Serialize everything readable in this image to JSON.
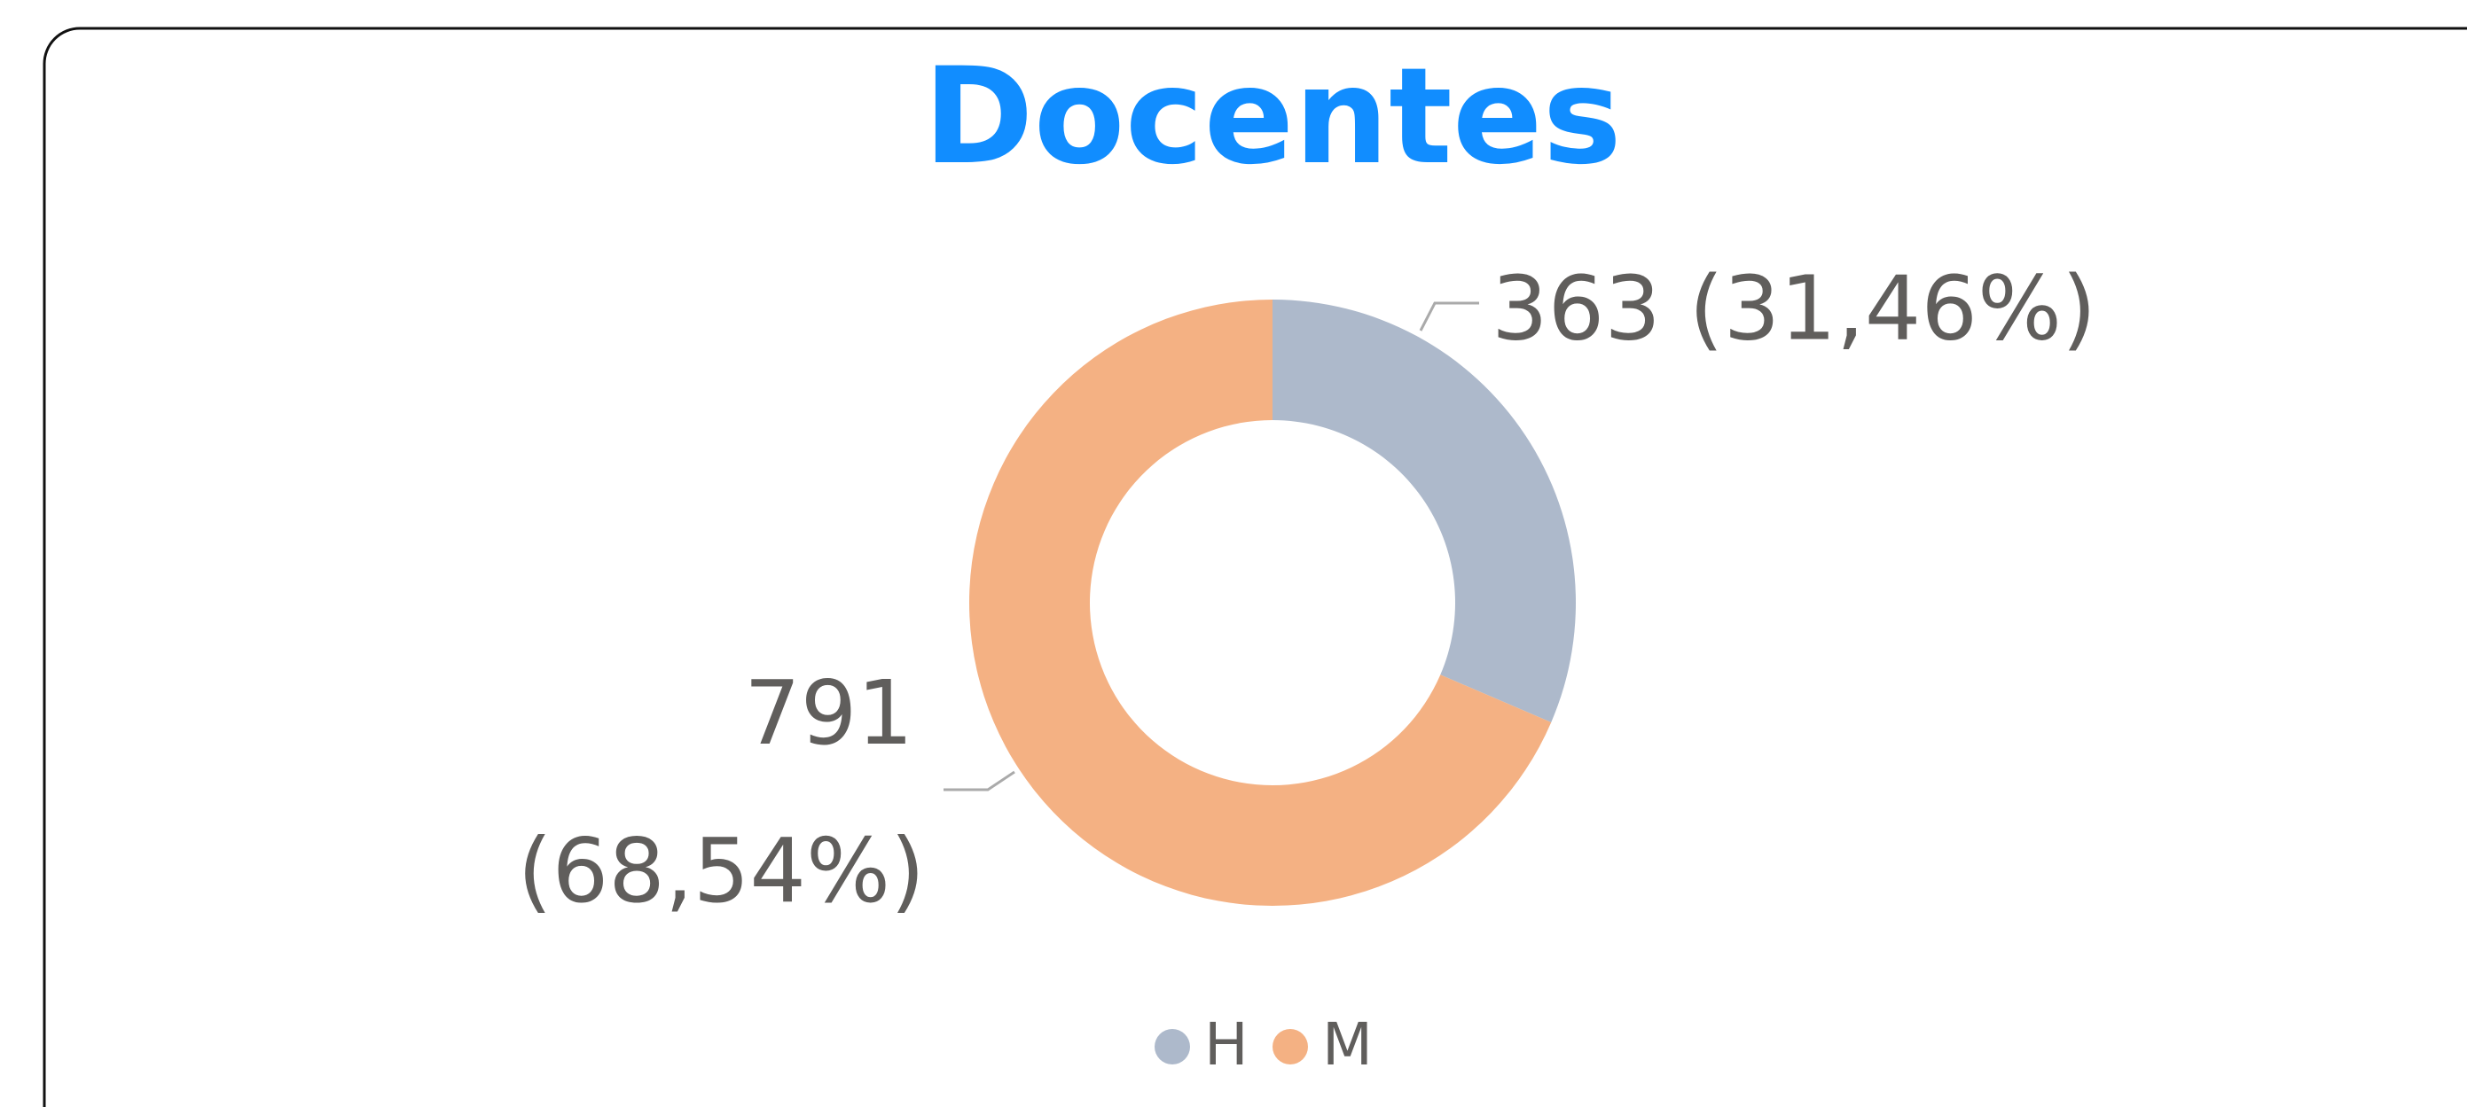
{
  "chart_data": {
    "type": "donut",
    "title": "Docentes",
    "categories": [
      "H",
      "M"
    ],
    "values": [
      363,
      791
    ],
    "value_labels": [
      "363 (31,46%)",
      "791 (68,54%)"
    ],
    "colors": [
      "#adb9cb",
      "#f4b183"
    ],
    "legend": "bottom"
  }
}
